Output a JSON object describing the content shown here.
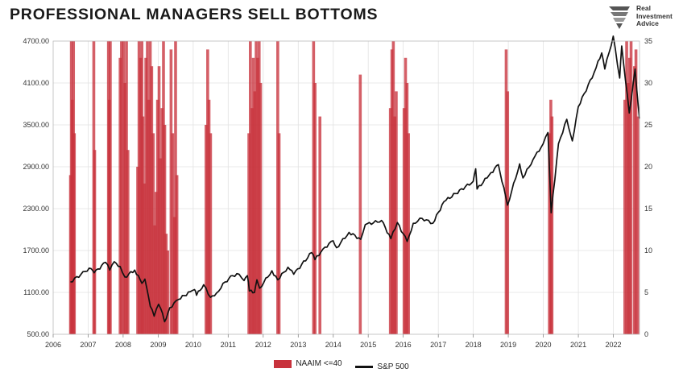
{
  "title": "PROFESSIONAL MANAGERS SELL BOTTOMS",
  "logo": {
    "lines": [
      "Real",
      "Investment",
      "Advice"
    ],
    "icon": "eagle-icon"
  },
  "chart_data": {
    "type": "bar+line",
    "title": "PROFESSIONAL MANAGERS SELL BOTTOMS",
    "x_range": [
      "2006-01-01",
      "2022-10-01"
    ],
    "x_ticks": [
      "2006",
      "2007",
      "2008",
      "2009",
      "2010",
      "2011",
      "2012",
      "2013",
      "2014",
      "2015",
      "2016",
      "2017",
      "2018",
      "2019",
      "2020",
      "2021",
      "2022"
    ],
    "y_left": {
      "range": [
        500,
        4700
      ],
      "ticks": [
        "4700.00",
        "4100.00",
        "3500.00",
        "2900.00",
        "2300.00",
        "1700.00",
        "1100.00",
        "500.00"
      ]
    },
    "y_right": {
      "range": [
        0,
        35
      ],
      "ticks": [
        "35",
        "30",
        "25",
        "20",
        "15",
        "10",
        "5",
        "0"
      ]
    },
    "grid": true,
    "legend_position": "bottom",
    "series": [
      {
        "name": "NAAIM <=40",
        "axis": "right",
        "type": "bar",
        "color": "#c8323c",
        "points": [
          [
            "2006-07-01",
            19
          ],
          [
            "2006-07-10",
            35
          ],
          [
            "2006-07-20",
            28
          ],
          [
            "2006-08-01",
            35
          ],
          [
            "2006-08-10",
            24
          ],
          [
            "2007-03-01",
            35
          ],
          [
            "2007-03-10",
            22
          ],
          [
            "2007-08-01",
            35
          ],
          [
            "2007-08-10",
            28
          ],
          [
            "2007-08-20",
            35
          ],
          [
            "2007-12-01",
            33
          ],
          [
            "2007-12-15",
            35
          ],
          [
            "2008-01-05",
            35
          ],
          [
            "2008-01-20",
            30
          ],
          [
            "2008-02-05",
            35
          ],
          [
            "2008-02-20",
            22
          ],
          [
            "2008-06-01",
            20
          ],
          [
            "2008-06-15",
            35
          ],
          [
            "2008-07-01",
            33
          ],
          [
            "2008-07-15",
            35
          ],
          [
            "2008-07-25",
            26
          ],
          [
            "2008-08-10",
            18
          ],
          [
            "2008-08-25",
            33
          ],
          [
            "2008-09-10",
            35
          ],
          [
            "2008-09-25",
            28
          ],
          [
            "2008-10-10",
            35
          ],
          [
            "2008-10-25",
            32
          ],
          [
            "2008-11-10",
            24
          ],
          [
            "2008-11-25",
            13
          ],
          [
            "2008-12-10",
            17
          ],
          [
            "2008-12-25",
            28
          ],
          [
            "2009-01-10",
            32
          ],
          [
            "2009-01-25",
            21
          ],
          [
            "2009-02-10",
            27
          ],
          [
            "2009-02-25",
            35
          ],
          [
            "2009-03-10",
            25
          ],
          [
            "2009-03-25",
            12
          ],
          [
            "2009-04-10",
            10
          ],
          [
            "2009-05-15",
            34
          ],
          [
            "2009-06-01",
            24
          ],
          [
            "2009-06-20",
            14
          ],
          [
            "2009-07-01",
            35
          ],
          [
            "2009-07-15",
            19
          ],
          [
            "2010-05-15",
            25
          ],
          [
            "2010-06-01",
            34
          ],
          [
            "2010-06-15",
            28
          ],
          [
            "2010-07-01",
            24
          ],
          [
            "2011-08-05",
            24
          ],
          [
            "2011-08-20",
            35
          ],
          [
            "2011-09-05",
            27
          ],
          [
            "2011-09-20",
            33
          ],
          [
            "2011-10-05",
            29
          ],
          [
            "2011-10-20",
            35
          ],
          [
            "2011-11-05",
            33
          ],
          [
            "2011-11-20",
            35
          ],
          [
            "2011-12-05",
            30
          ],
          [
            "2012-06-01",
            35
          ],
          [
            "2012-06-15",
            24
          ],
          [
            "2013-06-10",
            35
          ],
          [
            "2013-06-25",
            30
          ],
          [
            "2013-08-15",
            26
          ],
          [
            "2014-10-10",
            31
          ],
          [
            "2015-08-20",
            27
          ],
          [
            "2015-09-05",
            34
          ],
          [
            "2015-09-20",
            35
          ],
          [
            "2015-10-05",
            26
          ],
          [
            "2015-10-20",
            29
          ],
          [
            "2016-01-10",
            27
          ],
          [
            "2016-01-25",
            33
          ],
          [
            "2016-02-10",
            30
          ],
          [
            "2016-02-25",
            24
          ],
          [
            "2018-12-10",
            34
          ],
          [
            "2018-12-25",
            29
          ],
          [
            "2020-03-05",
            24
          ],
          [
            "2020-03-20",
            28
          ],
          [
            "2020-04-01",
            26
          ],
          [
            "2022-05-01",
            28
          ],
          [
            "2022-05-20",
            35
          ],
          [
            "2022-06-05",
            30
          ],
          [
            "2022-06-20",
            33
          ],
          [
            "2022-07-05",
            35
          ],
          [
            "2022-08-10",
            32
          ],
          [
            "2022-08-25",
            34
          ],
          [
            "2022-09-15",
            26
          ]
        ]
      },
      {
        "name": "S&P 500",
        "axis": "left",
        "type": "line",
        "color": "#111111",
        "points": [
          [
            "2006-07-01",
            1250
          ],
          [
            "2006-12-01",
            1400
          ],
          [
            "2007-02-01",
            1440
          ],
          [
            "2007-03-05",
            1380
          ],
          [
            "2007-07-01",
            1530
          ],
          [
            "2007-08-15",
            1420
          ],
          [
            "2007-10-01",
            1540
          ],
          [
            "2007-12-01",
            1470
          ],
          [
            "2008-01-20",
            1320
          ],
          [
            "2008-05-01",
            1420
          ],
          [
            "2008-07-15",
            1230
          ],
          [
            "2008-08-15",
            1290
          ],
          [
            "2008-10-10",
            900
          ],
          [
            "2008-11-20",
            760
          ],
          [
            "2009-01-05",
            930
          ],
          [
            "2009-02-15",
            800
          ],
          [
            "2009-03-09",
            680
          ],
          [
            "2009-05-01",
            880
          ],
          [
            "2009-08-01",
            1000
          ],
          [
            "2009-12-01",
            1110
          ],
          [
            "2010-01-15",
            1140
          ],
          [
            "2010-02-05",
            1060
          ],
          [
            "2010-04-20",
            1210
          ],
          [
            "2010-07-01",
            1030
          ],
          [
            "2010-09-01",
            1090
          ],
          [
            "2010-12-01",
            1250
          ],
          [
            "2011-02-15",
            1340
          ],
          [
            "2011-04-25",
            1360
          ],
          [
            "2011-06-15",
            1270
          ],
          [
            "2011-07-20",
            1340
          ],
          [
            "2011-08-10",
            1120
          ],
          [
            "2011-10-03",
            1100
          ],
          [
            "2011-10-28",
            1280
          ],
          [
            "2011-11-25",
            1160
          ],
          [
            "2012-04-01",
            1410
          ],
          [
            "2012-06-01",
            1280
          ],
          [
            "2012-09-15",
            1460
          ],
          [
            "2012-11-15",
            1360
          ],
          [
            "2013-05-20",
            1670
          ],
          [
            "2013-06-24",
            1570
          ],
          [
            "2013-09-15",
            1720
          ],
          [
            "2013-12-31",
            1840
          ],
          [
            "2014-02-05",
            1740
          ],
          [
            "2014-06-15",
            1960
          ],
          [
            "2014-10-15",
            1860
          ],
          [
            "2014-12-01",
            2070
          ],
          [
            "2015-05-20",
            2130
          ],
          [
            "2015-08-25",
            1870
          ],
          [
            "2015-11-01",
            2100
          ],
          [
            "2016-02-11",
            1830
          ],
          [
            "2016-04-15",
            2090
          ],
          [
            "2016-07-15",
            2160
          ],
          [
            "2016-11-05",
            2090
          ],
          [
            "2017-03-01",
            2400
          ],
          [
            "2017-12-31",
            2690
          ],
          [
            "2018-01-26",
            2870
          ],
          [
            "2018-02-09",
            2580
          ],
          [
            "2018-06-15",
            2780
          ],
          [
            "2018-09-20",
            2930
          ],
          [
            "2018-12-24",
            2350
          ],
          [
            "2019-04-30",
            2940
          ],
          [
            "2019-06-03",
            2740
          ],
          [
            "2019-09-15",
            3000
          ],
          [
            "2019-12-31",
            3230
          ],
          [
            "2020-02-19",
            3390
          ],
          [
            "2020-03-23",
            2240
          ],
          [
            "2020-06-08",
            3230
          ],
          [
            "2020-09-02",
            3580
          ],
          [
            "2020-10-30",
            3270
          ],
          [
            "2020-12-31",
            3760
          ],
          [
            "2021-06-15",
            4250
          ],
          [
            "2021-09-02",
            4530
          ],
          [
            "2021-10-04",
            4300
          ],
          [
            "2021-12-31",
            4770
          ],
          [
            "2022-03-08",
            4170
          ],
          [
            "2022-03-29",
            4630
          ],
          [
            "2022-06-16",
            3670
          ],
          [
            "2022-08-16",
            4300
          ],
          [
            "2022-09-30",
            3590
          ]
        ]
      }
    ]
  },
  "legend": [
    {
      "label": "NAAIM <=40",
      "color": "#c8323c",
      "kind": "box"
    },
    {
      "label": "S&P 500",
      "color": "#111111",
      "kind": "line"
    }
  ]
}
